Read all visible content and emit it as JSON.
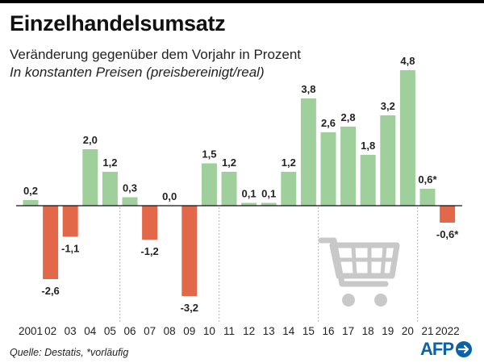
{
  "header": {
    "title": "Einzelhandelsumsatz",
    "subtitle": "Veränderung gegenüber dem Vorjahr in Prozent",
    "subtitle2": "In konstanten Preisen (preisbereinigt/real)"
  },
  "footer": {
    "source": "Quelle: Destatis, *vorläufig",
    "logo": "AFP"
  },
  "colors": {
    "positive": "#9fcf9a",
    "negative": "#e3684a",
    "cart": "#c8c8c8",
    "logo": "#0a63a8"
  },
  "icons": [
    "shopping-cart-icon",
    "afp-logo"
  ],
  "chart_data": {
    "type": "bar",
    "categories": [
      "2001",
      "02",
      "03",
      "04",
      "05",
      "06",
      "07",
      "08",
      "09",
      "10",
      "11",
      "12",
      "13",
      "14",
      "15",
      "16",
      "17",
      "18",
      "19",
      "20",
      "21",
      "2022"
    ],
    "values": [
      0.2,
      -2.6,
      -1.1,
      2.0,
      1.2,
      0.3,
      -1.2,
      0.0,
      -3.2,
      1.5,
      1.2,
      0.1,
      0.1,
      1.2,
      3.8,
      2.6,
      2.8,
      1.8,
      3.2,
      4.8,
      0.6,
      -0.6
    ],
    "labels": [
      "0,2",
      "-2,6",
      "-1,1",
      "2,0",
      "1,2",
      "0,3",
      "-1,2",
      "0,0",
      "-3,2",
      "1,5",
      "1,2",
      "0,1",
      "0,1",
      "1,2",
      "3,8",
      "2,6",
      "2,8",
      "1,8",
      "3,2",
      "4,8",
      "0,6*",
      "-0,6*"
    ],
    "title": "Einzelhandelsumsatz",
    "xlabel": "",
    "ylabel": "",
    "ylim": [
      -3.5,
      5.0
    ],
    "grid": false,
    "separators_after": [
      "05",
      "10",
      "15",
      "20"
    ]
  }
}
